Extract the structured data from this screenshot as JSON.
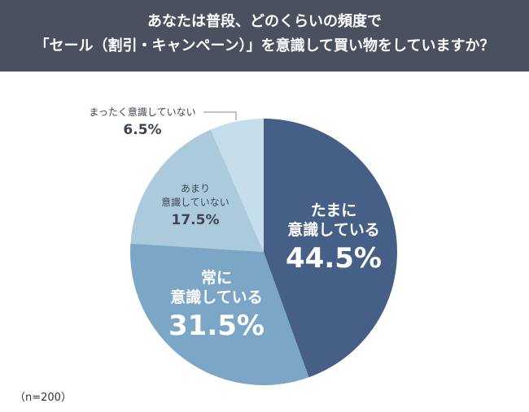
{
  "chart_data": {
    "type": "pie",
    "title": [
      "あなたは普段、どのくらいの頻度で",
      "「セール（割引・キャンペーン）」を意識して買い物をしていますか？"
    ],
    "slices": [
      {
        "label": "たまに意識している",
        "lines": [
          "たまに",
          "意識している"
        ],
        "value": 44.5,
        "display": "44.5%",
        "color": "#455f86"
      },
      {
        "label": "常に意識している",
        "lines": [
          "常に",
          "意識している"
        ],
        "value": 31.5,
        "display": "31.5%",
        "color": "#7ba6c6"
      },
      {
        "label": "あまり意識していない",
        "lines": [
          "あまり",
          "意識していない"
        ],
        "value": 17.5,
        "display": "17.5%",
        "color": "#abcbdd"
      },
      {
        "label": "まったく意識していない",
        "lines": [
          "まったく意識していない"
        ],
        "value": 6.5,
        "display": "6.5%",
        "color": "#c6deeb"
      }
    ],
    "start": "top",
    "direction": "clockwise",
    "note": "（n=200）"
  }
}
